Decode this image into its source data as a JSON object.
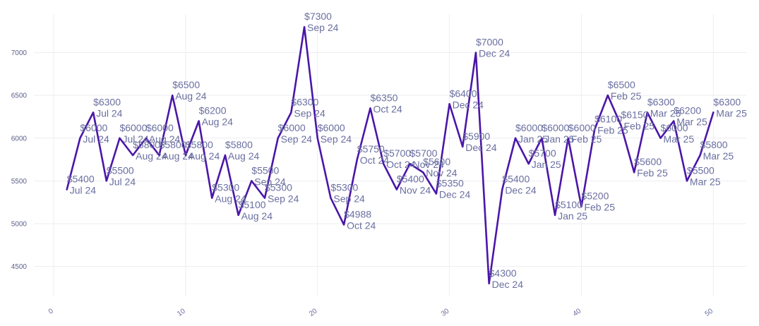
{
  "chart_data": {
    "type": "line",
    "title": "",
    "xlabel": "",
    "ylabel": "",
    "xlim": [
      -1.5,
      52.5
    ],
    "ylim": [
      4150,
      7450
    ],
    "grid": true,
    "line_color": "#4b16a8",
    "label_color": "#6a6fa0",
    "x_ticks": [
      0,
      10,
      20,
      30,
      40,
      50
    ],
    "x_tick_labels": [
      "0",
      "10",
      "20",
      "30",
      "40",
      "50"
    ],
    "y_ticks": [
      4500,
      5000,
      5500,
      6000,
      6500,
      7000
    ],
    "y_tick_labels": [
      "4500",
      "5000",
      "5500",
      "6000",
      "6500",
      "7000"
    ],
    "series": [
      {
        "name": "price",
        "points": [
          {
            "x": 1,
            "y": 5400,
            "price": "$5400",
            "month": "Jul 24"
          },
          {
            "x": 2,
            "y": 6000,
            "price": "$6000",
            "month": "Jul 24"
          },
          {
            "x": 3,
            "y": 6300,
            "price": "$6300",
            "month": "Jul 24"
          },
          {
            "x": 4,
            "y": 5500,
            "price": "$5500",
            "month": "Jul 24"
          },
          {
            "x": 5,
            "y": 6000,
            "price": "$6000",
            "month": "Jul 24"
          },
          {
            "x": 6,
            "y": 5800,
            "price": "$5800",
            "month": "Aug 24"
          },
          {
            "x": 7,
            "y": 6000,
            "price": "$6000",
            "month": "Aug 24"
          },
          {
            "x": 8,
            "y": 5800,
            "price": "$5800",
            "month": "Aug 24"
          },
          {
            "x": 9,
            "y": 6500,
            "price": "$6500",
            "month": "Aug 24"
          },
          {
            "x": 10,
            "y": 5800,
            "price": "$5800",
            "month": "Aug 24"
          },
          {
            "x": 11,
            "y": 6200,
            "price": "$6200",
            "month": "Aug 24"
          },
          {
            "x": 12,
            "y": 5300,
            "price": "$5300",
            "month": "Aug 24"
          },
          {
            "x": 13,
            "y": 5800,
            "price": "$5800",
            "month": "Aug 24"
          },
          {
            "x": 14,
            "y": 5100,
            "price": "$5100",
            "month": "Aug 24"
          },
          {
            "x": 15,
            "y": 5500,
            "price": "$5500",
            "month": "Sep 24"
          },
          {
            "x": 16,
            "y": 5300,
            "price": "$5300",
            "month": "Sep 24"
          },
          {
            "x": 17,
            "y": 6000,
            "price": "$6000",
            "month": "Sep 24"
          },
          {
            "x": 18,
            "y": 6300,
            "price": "$6300",
            "month": "Sep 24"
          },
          {
            "x": 19,
            "y": 7300,
            "price": "$7300",
            "month": "Sep 24"
          },
          {
            "x": 20,
            "y": 6000,
            "price": "$6000",
            "month": "Sep 24"
          },
          {
            "x": 21,
            "y": 5300,
            "price": "$5300",
            "month": "Sep 24"
          },
          {
            "x": 22,
            "y": 4988,
            "price": "$4988",
            "month": "Oct 24"
          },
          {
            "x": 23,
            "y": 5750,
            "price": "$5750",
            "month": "Oct 24"
          },
          {
            "x": 24,
            "y": 6350,
            "price": "$6350",
            "month": "Oct 24"
          },
          {
            "x": 25,
            "y": 5700,
            "price": "$5700",
            "month": "Oct 24"
          },
          {
            "x": 26,
            "y": 5400,
            "price": "$5400",
            "month": "Nov 24"
          },
          {
            "x": 27,
            "y": 5700,
            "price": "$5700",
            "month": "Nov 24"
          },
          {
            "x": 28,
            "y": 5600,
            "price": "$5600",
            "month": "Nov 24"
          },
          {
            "x": 29,
            "y": 5350,
            "price": "$5350",
            "month": "Dec 24"
          },
          {
            "x": 30,
            "y": 6400,
            "price": "$6400",
            "month": "Dec 24"
          },
          {
            "x": 31,
            "y": 5900,
            "price": "$5900",
            "month": "Dec 24"
          },
          {
            "x": 32,
            "y": 7000,
            "price": "$7000",
            "month": "Dec 24"
          },
          {
            "x": 33,
            "y": 4300,
            "price": "$4300",
            "month": "Dec 24"
          },
          {
            "x": 34,
            "y": 5400,
            "price": "$5400",
            "month": "Dec 24"
          },
          {
            "x": 35,
            "y": 6000,
            "price": "$6000",
            "month": "Jan 25"
          },
          {
            "x": 36,
            "y": 5700,
            "price": "$5700",
            "month": "Jan 25"
          },
          {
            "x": 37,
            "y": 6000,
            "price": "$6000",
            "month": "Jan 25"
          },
          {
            "x": 38,
            "y": 5100,
            "price": "$5100",
            "month": "Jan 25"
          },
          {
            "x": 39,
            "y": 6000,
            "price": "$6000",
            "month": "Feb 25"
          },
          {
            "x": 40,
            "y": 5200,
            "price": "$5200",
            "month": "Feb 25"
          },
          {
            "x": 41,
            "y": 6100,
            "price": "$6100",
            "month": "Feb 25"
          },
          {
            "x": 42,
            "y": 6500,
            "price": "$6500",
            "month": "Feb 25"
          },
          {
            "x": 43,
            "y": 6150,
            "price": "$6150",
            "month": "Feb 25"
          },
          {
            "x": 44,
            "y": 5600,
            "price": "$5600",
            "month": "Feb 25"
          },
          {
            "x": 45,
            "y": 6300,
            "price": "$6300",
            "month": "Mar 25"
          },
          {
            "x": 46,
            "y": 6000,
            "price": "$6000",
            "month": "Mar 25"
          },
          {
            "x": 47,
            "y": 6200,
            "price": "$6200",
            "month": "Mar 25"
          },
          {
            "x": 48,
            "y": 5500,
            "price": "$5500",
            "month": "Mar 25"
          },
          {
            "x": 49,
            "y": 5800,
            "price": "$5800",
            "month": "Mar 25"
          },
          {
            "x": 50,
            "y": 6300,
            "price": "$6300",
            "month": "Mar 25"
          }
        ]
      }
    ]
  }
}
